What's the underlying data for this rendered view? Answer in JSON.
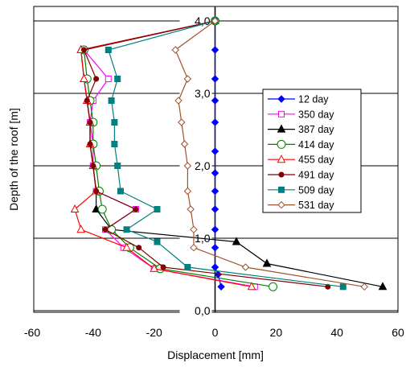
{
  "chart_data": {
    "type": "line",
    "xlabel": "Displacement  [mm]",
    "ylabel": "Depth of the roof [m]",
    "xlim": [
      -60,
      60
    ],
    "ylim": [
      0,
      4.2
    ],
    "x_ticks": [
      "-60",
      "-40",
      "-20",
      "0",
      "20",
      "40",
      "60"
    ],
    "y_ticks": [
      "0,0",
      "1,0",
      "2,0",
      "3,0",
      "4,0"
    ],
    "grid": "horizontal major gridlines",
    "legend_position": "right",
    "series": [
      {
        "name": "12 day",
        "color": "#0000ff",
        "marker": "diamond-filled",
        "points": [
          [
            0,
            4.0
          ],
          [
            0,
            3.6
          ],
          [
            0,
            3.2
          ],
          [
            0,
            2.9
          ],
          [
            0,
            2.6
          ],
          [
            0,
            2.2
          ],
          [
            0,
            1.9
          ],
          [
            0,
            1.65
          ],
          [
            0,
            1.4
          ],
          [
            0,
            1.12
          ],
          [
            0,
            0.87
          ],
          [
            0,
            0.6
          ],
          [
            1,
            0.5
          ],
          [
            2,
            0.33
          ]
        ]
      },
      {
        "name": "350 day",
        "color": "#ff00ff",
        "marker": "square-open",
        "points": [
          [
            0,
            4.0
          ],
          [
            -43,
            3.6
          ],
          [
            -35,
            3.2
          ],
          [
            -40,
            2.9
          ],
          [
            -41,
            2.6
          ],
          [
            -40,
            2.3
          ],
          [
            -40,
            2.0
          ],
          [
            -39,
            1.65
          ],
          [
            -26,
            1.4
          ],
          [
            -36,
            1.12
          ],
          [
            -30,
            0.87
          ],
          [
            -20,
            0.58
          ],
          [
            13,
            0.33
          ]
        ]
      },
      {
        "name": "387 day",
        "color": "#000000",
        "marker": "triangle-filled",
        "points": [
          [
            0,
            4.0
          ],
          [
            -44,
            3.6
          ],
          [
            -43,
            3.2
          ],
          [
            -42,
            2.9
          ],
          [
            -41,
            2.6
          ],
          [
            -41,
            2.3
          ],
          [
            -40,
            2.0
          ],
          [
            -39,
            1.65
          ],
          [
            -39,
            1.4
          ],
          [
            -34,
            1.12
          ],
          [
            7,
            0.95
          ],
          [
            17,
            0.65
          ],
          [
            55,
            0.33
          ]
        ]
      },
      {
        "name": "414 day",
        "color": "#008000",
        "marker": "circle-open",
        "points": [
          [
            0,
            4.0
          ],
          [
            -43,
            3.6
          ],
          [
            -42,
            3.2
          ],
          [
            -41,
            2.9
          ],
          [
            -40,
            2.6
          ],
          [
            -40,
            2.3
          ],
          [
            -39,
            2.0
          ],
          [
            -38,
            1.65
          ],
          [
            -37,
            1.4
          ],
          [
            -34,
            1.12
          ],
          [
            -28,
            0.87
          ],
          [
            -18,
            0.58
          ],
          [
            19,
            0.33
          ]
        ]
      },
      {
        "name": "455 day",
        "color": "#ff0000",
        "marker": "triangle-open",
        "points": [
          [
            0,
            4.0
          ],
          [
            -44,
            3.6
          ],
          [
            -43,
            3.2
          ],
          [
            -42,
            2.9
          ],
          [
            -41,
            2.6
          ],
          [
            -41,
            2.3
          ],
          [
            -40,
            2.0
          ],
          [
            -39,
            1.65
          ],
          [
            -46,
            1.4
          ],
          [
            -44,
            1.12
          ],
          [
            -29,
            0.87
          ],
          [
            -20,
            0.58
          ],
          [
            12,
            0.33
          ]
        ]
      },
      {
        "name": "491 day",
        "color": "#800000",
        "marker": "circle-filled",
        "points": [
          [
            0,
            4.0
          ],
          [
            -43,
            3.6
          ],
          [
            -39,
            3.2
          ],
          [
            -42,
            2.9
          ],
          [
            -41,
            2.6
          ],
          [
            -41,
            2.3
          ],
          [
            -40,
            2.0
          ],
          [
            -39,
            1.65
          ],
          [
            -26,
            1.4
          ],
          [
            -36,
            1.12
          ],
          [
            -25,
            0.87
          ],
          [
            -17,
            0.6
          ],
          [
            37,
            0.33
          ]
        ]
      },
      {
        "name": "509 day",
        "color": "#008080",
        "marker": "square-filled",
        "points": [
          [
            0,
            4.0
          ],
          [
            -35,
            3.6
          ],
          [
            -32,
            3.2
          ],
          [
            -34,
            2.9
          ],
          [
            -33,
            2.6
          ],
          [
            -33,
            2.3
          ],
          [
            -32,
            2.0
          ],
          [
            -31,
            1.65
          ],
          [
            -19,
            1.4
          ],
          [
            -29,
            1.12
          ],
          [
            -19,
            0.95
          ],
          [
            -9,
            0.6
          ],
          [
            42,
            0.33
          ]
        ]
      },
      {
        "name": "531 day",
        "color": "#a0522d",
        "marker": "diamond-open",
        "points": [
          [
            0,
            4.0
          ],
          [
            -13,
            3.6
          ],
          [
            -9,
            3.2
          ],
          [
            -12,
            2.9
          ],
          [
            -11,
            2.6
          ],
          [
            -10,
            2.3
          ],
          [
            -9,
            2.0
          ],
          [
            -9,
            1.65
          ],
          [
            -8,
            1.4
          ],
          [
            -7,
            1.12
          ],
          [
            -7,
            0.87
          ],
          [
            10,
            0.6
          ],
          [
            49,
            0.33
          ]
        ]
      }
    ]
  }
}
